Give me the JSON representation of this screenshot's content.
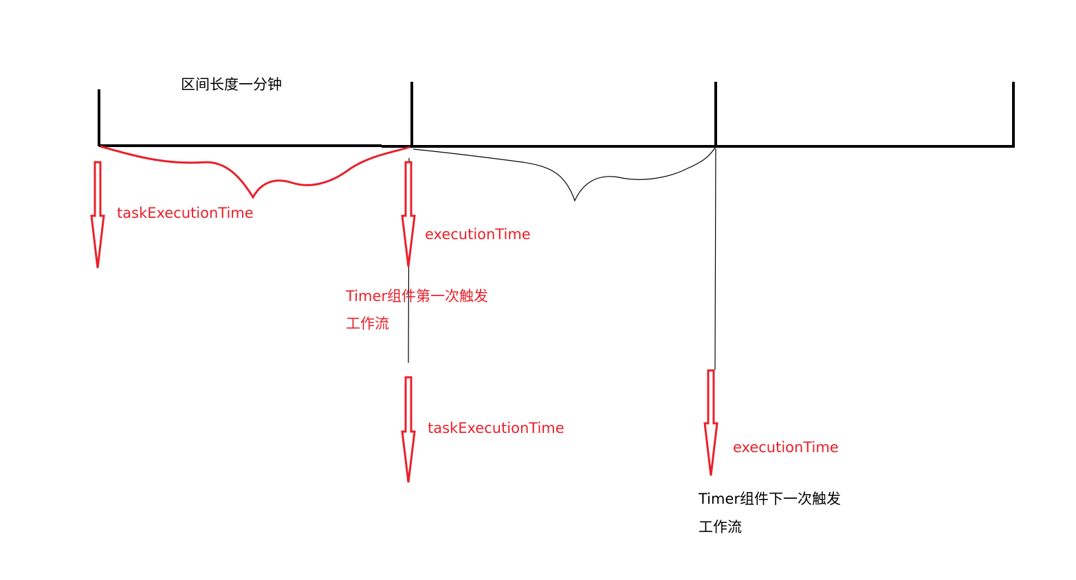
{
  "interval_label": "区间长度一分钟",
  "labels": {
    "task_execution_time_1": "taskExecutionTime",
    "execution_time_1": "executionTime",
    "timer_first_line1": "Timer组件第一次触发",
    "timer_first_line2": "工作流",
    "task_execution_time_2": "taskExecutionTime",
    "execution_time_2": "executionTime",
    "timer_next_line1": "Timer组件下一次触发",
    "timer_next_line2": "工作流"
  },
  "colors": {
    "timeline": "#000000",
    "annotation": "#e8202a",
    "arrow_fill": "#ffffff"
  }
}
